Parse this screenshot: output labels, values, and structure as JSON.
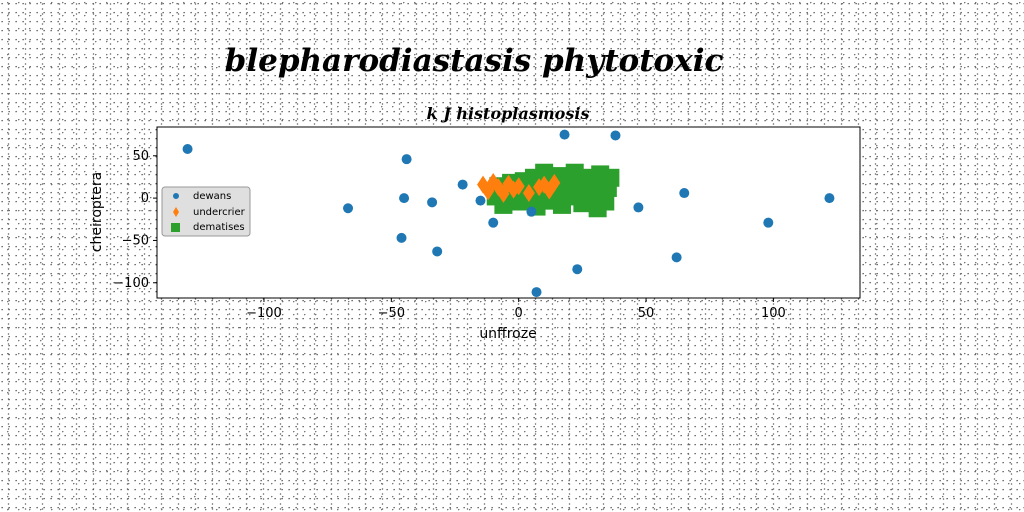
{
  "chart_data": {
    "type": "scatter",
    "suptitle": "blepharodiastasis phytotoxic",
    "title": "k J histoplasmosis",
    "xlabel": "unffroze",
    "ylabel": "cheiroptera",
    "xlim": [
      -142,
      134
    ],
    "ylim": [
      -118,
      84
    ],
    "xticks": [
      -100,
      -50,
      0,
      50,
      100
    ],
    "xtick_labels": [
      "−100",
      "−50",
      "0",
      "50",
      "100"
    ],
    "yticks": [
      50,
      0,
      -50,
      -100
    ],
    "ytick_labels": [
      "50",
      "0",
      "−50",
      "−100"
    ],
    "legend_position": "center-left",
    "series": [
      {
        "name": "dewans",
        "color": "#1f77b4",
        "marker": "circle",
        "points": [
          [
            -130,
            58
          ],
          [
            -44,
            46
          ],
          [
            -22,
            16
          ],
          [
            -45,
            0
          ],
          [
            -34,
            -5
          ],
          [
            -67,
            -12
          ],
          [
            -46,
            -47
          ],
          [
            -32,
            -63
          ],
          [
            -10,
            -29
          ],
          [
            -15,
            -3
          ],
          [
            5,
            -16
          ],
          [
            18,
            75
          ],
          [
            38,
            74
          ],
          [
            47,
            -11
          ],
          [
            65,
            6
          ],
          [
            62,
            -70
          ],
          [
            98,
            -29
          ],
          [
            122,
            0
          ],
          [
            23,
            -84
          ],
          [
            7,
            -111
          ]
        ]
      },
      {
        "name": "undercrier",
        "color": "#ff7f0e",
        "marker": "diamond",
        "points": [
          [
            -14,
            16
          ],
          [
            -12,
            8
          ],
          [
            -10,
            19
          ],
          [
            -8,
            13
          ],
          [
            -6,
            5
          ],
          [
            -4,
            17
          ],
          [
            -2,
            10
          ],
          [
            0,
            14
          ],
          [
            4,
            6
          ],
          [
            8,
            13
          ],
          [
            10,
            16
          ],
          [
            12,
            9
          ],
          [
            14,
            18
          ]
        ]
      },
      {
        "name": "dematises",
        "color": "#2ca02c",
        "marker": "square",
        "points": [
          [
            -8,
            14
          ],
          [
            -9,
            2
          ],
          [
            -6,
            -8
          ],
          [
            -3,
            18
          ],
          [
            -1,
            6
          ],
          [
            0,
            -4
          ],
          [
            3,
            13
          ],
          [
            5,
            0
          ],
          [
            6,
            24
          ],
          [
            7,
            -10
          ],
          [
            9,
            8
          ],
          [
            10,
            30
          ],
          [
            11,
            -3
          ],
          [
            13,
            16
          ],
          [
            14,
            2
          ],
          [
            16,
            26
          ],
          [
            17,
            -8
          ],
          [
            18,
            10
          ],
          [
            20,
            20
          ],
          [
            21,
            2
          ],
          [
            22,
            30
          ],
          [
            24,
            12
          ],
          [
            25,
            -6
          ],
          [
            27,
            24
          ],
          [
            28,
            6
          ],
          [
            30,
            18
          ],
          [
            31,
            -12
          ],
          [
            32,
            28
          ],
          [
            33,
            0
          ],
          [
            35,
            12
          ],
          [
            36,
            24
          ],
          [
            34,
            -4
          ],
          [
            26,
            14
          ],
          [
            19,
            6
          ],
          [
            2,
            20
          ],
          [
            -4,
            8
          ]
        ]
      }
    ]
  }
}
